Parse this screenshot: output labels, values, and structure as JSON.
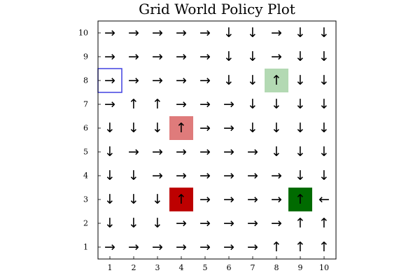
{
  "chart_data": {
    "type": "heatmap",
    "title": "Grid World Policy Plot",
    "xlabel": "",
    "ylabel": "",
    "xlim": [
      0.5,
      10.5
    ],
    "ylim": [
      0.5,
      10.5
    ],
    "x_ticks": [
      "1",
      "2",
      "3",
      "4",
      "5",
      "6",
      "7",
      "8",
      "9",
      "10"
    ],
    "y_ticks": [
      "1",
      "2",
      "3",
      "4",
      "5",
      "6",
      "7",
      "8",
      "9",
      "10"
    ],
    "grid": false,
    "legend": "none",
    "policy_rows_top_to_bottom": [
      {
        "y": 10,
        "actions": [
          "right",
          "right",
          "right",
          "right",
          "right",
          "down",
          "down",
          "right",
          "down",
          "down"
        ]
      },
      {
        "y": 9,
        "actions": [
          "right",
          "right",
          "right",
          "right",
          "right",
          "down",
          "down",
          "right",
          "down",
          "down"
        ]
      },
      {
        "y": 8,
        "actions": [
          "right",
          "right",
          "right",
          "right",
          "right",
          "down",
          "down",
          "up",
          "down",
          "down"
        ]
      },
      {
        "y": 7,
        "actions": [
          "right",
          "up",
          "up",
          "right",
          "right",
          "right",
          "down",
          "down",
          "down",
          "down"
        ]
      },
      {
        "y": 6,
        "actions": [
          "down",
          "down",
          "down",
          "up",
          "right",
          "right",
          "down",
          "down",
          "down",
          "down"
        ]
      },
      {
        "y": 5,
        "actions": [
          "down",
          "right",
          "right",
          "right",
          "right",
          "right",
          "right",
          "down",
          "down",
          "down"
        ]
      },
      {
        "y": 4,
        "actions": [
          "down",
          "down",
          "right",
          "right",
          "right",
          "right",
          "right",
          "right",
          "down",
          "down"
        ]
      },
      {
        "y": 3,
        "actions": [
          "down",
          "down",
          "down",
          "up",
          "right",
          "right",
          "right",
          "right",
          "up",
          "left"
        ]
      },
      {
        "y": 2,
        "actions": [
          "down",
          "down",
          "down",
          "right",
          "right",
          "right",
          "right",
          "right",
          "up",
          "up"
        ]
      },
      {
        "y": 1,
        "actions": [
          "right",
          "right",
          "right",
          "right",
          "right",
          "right",
          "right",
          "up",
          "up",
          "up"
        ]
      }
    ],
    "highlighted_cells": [
      {
        "x": 8,
        "y": 8,
        "fill": "#b3d9b3",
        "kind": "filled"
      },
      {
        "x": 4,
        "y": 6,
        "fill": "#df7b7b",
        "kind": "filled"
      },
      {
        "x": 4,
        "y": 3,
        "fill": "#bd0000",
        "kind": "filled"
      },
      {
        "x": 9,
        "y": 3,
        "fill": "#006b00",
        "kind": "filled"
      },
      {
        "x": 1,
        "y": 8,
        "stroke": "#4040e0",
        "kind": "outline"
      }
    ],
    "arrow_glyphs": {
      "right": "→",
      "left": "←",
      "up": "↑",
      "down": "↓"
    }
  }
}
